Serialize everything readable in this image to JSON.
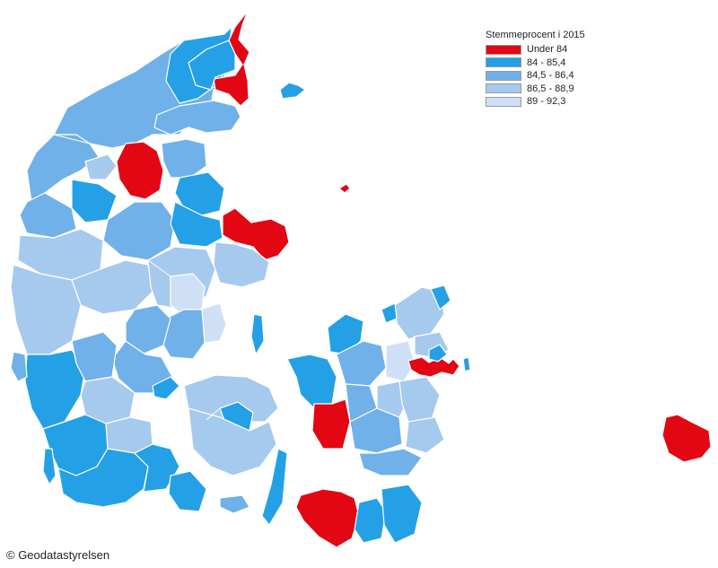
{
  "legend": {
    "title": "Stemmeprocent i 2015",
    "items": [
      {
        "label": "Under 84",
        "color": "#e30613"
      },
      {
        "label": "84 - 85,4",
        "color": "#24a0e6"
      },
      {
        "label": "84,5 - 86,4",
        "color": "#6fb1e8"
      },
      {
        "label": "86,5 - 88,9",
        "color": "#a6c9ee"
      },
      {
        "label": "89 - 92,3",
        "color": "#cfe0f6"
      }
    ]
  },
  "credit": "© Geodatastyrelsen"
}
